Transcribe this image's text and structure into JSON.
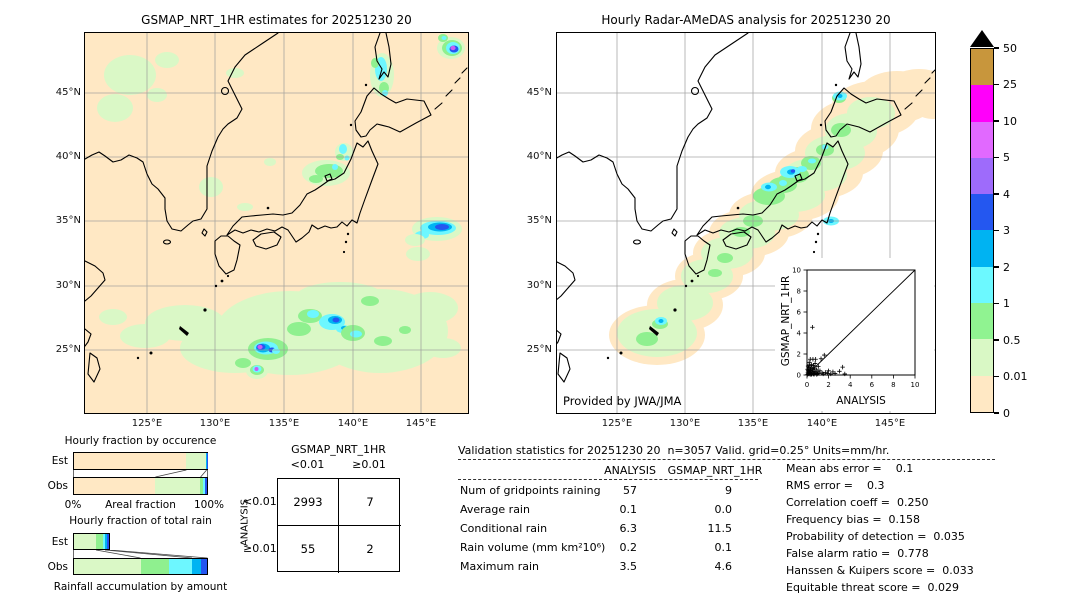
{
  "chart_data": [
    {
      "id": "gsmap_map",
      "type": "map",
      "title": "GSMAP_NRT_1HR estimates for 20251230 20",
      "lat_ticks": [
        "45°N",
        "40°N",
        "35°N",
        "30°N",
        "25°N"
      ],
      "lon_ticks": [
        "125°E",
        "130°E",
        "135°E",
        "140°E",
        "145°E"
      ]
    },
    {
      "id": "radar_map",
      "type": "map",
      "title": "Hourly Radar-AMeDAS analysis for 20251230 20",
      "lat_ticks": [
        "45°N",
        "40°N",
        "35°N",
        "30°N",
        "25°N"
      ],
      "lon_ticks": [
        "125°E",
        "130°E",
        "135°E",
        "140°E",
        "145°E"
      ],
      "credit": "Provided by JWA/JMA"
    },
    {
      "id": "colorbar",
      "type": "colorbar",
      "labels": [
        "50",
        "25",
        "10",
        "5",
        "4",
        "3",
        "2",
        "1",
        "0.5",
        "0.01",
        "0"
      ],
      "colors": [
        "#c8963c",
        "#ff00fa",
        "#e169ff",
        "#9e6bfb",
        "#2457f0",
        "#00b3f2",
        "#6cf9ff",
        "#90f391",
        "#d9f8c5",
        "#ffe8c4"
      ],
      "overflow_color": "#000000"
    },
    {
      "id": "occurrence_fraction",
      "type": "bar",
      "title": "Hourly fraction by occurence",
      "xlabel": "Areal fraction",
      "xtick_labels": [
        "0%",
        "100%"
      ],
      "rows": [
        "Est",
        "Obs"
      ],
      "series": [
        {
          "name": "Est",
          "segments": [
            {
              "c": "#ffe8c4",
              "v": 84
            },
            {
              "c": "#daf8c6",
              "v": 15
            },
            {
              "c": "#8ff08f",
              "v": 0.4
            },
            {
              "c": "#00b4f2",
              "v": 0.3
            },
            {
              "c": "#2456f0",
              "v": 0.3
            }
          ]
        },
        {
          "name": "Obs",
          "segments": [
            {
              "c": "#ffe8c4",
              "v": 61
            },
            {
              "c": "#daf8c6",
              "v": 33.5
            },
            {
              "c": "#8ff08f",
              "v": 2.2
            },
            {
              "c": "#6df7ff",
              "v": 1.5
            },
            {
              "c": "#2456f0",
              "v": 1.8
            }
          ]
        }
      ]
    },
    {
      "id": "totalrain_fraction",
      "type": "bar",
      "title": "Hourly fraction of total rain",
      "caption": "Rainfall accumulation by amount",
      "rows": [
        "Est",
        "Obs"
      ],
      "series": [
        {
          "name": "Est",
          "segments": [
            {
              "c": "#daf8c6",
              "v": 17
            },
            {
              "c": "#8ff08f",
              "v": 5.5
            },
            {
              "c": "#6df7ff",
              "v": 2
            },
            {
              "c": "#00b4f2",
              "v": 1.2
            },
            {
              "c": "#2456f0",
              "v": 1.8
            }
          ]
        },
        {
          "name": "Obs",
          "segments": [
            {
              "c": "#daf8c6",
              "v": 50
            },
            {
              "c": "#8ff08f",
              "v": 21.5
            },
            {
              "c": "#6df7ff",
              "v": 17
            },
            {
              "c": "#00b4f2",
              "v": 7
            },
            {
              "c": "#2456f0",
              "v": 4.5
            }
          ]
        }
      ]
    },
    {
      "id": "contingency_table",
      "type": "table",
      "col_title": "GSMAP_NRT_1HR",
      "row_title": "ANALYSIS",
      "col_labels": [
        "<0.01",
        "≥0.01"
      ],
      "row_labels": [
        "<0.01",
        "≥0.01"
      ],
      "values": [
        [
          "2993",
          "7"
        ],
        [
          "55",
          "2"
        ]
      ]
    },
    {
      "id": "inset_scatter",
      "type": "scatter",
      "xlabel": "ANALYSIS",
      "ylabel": "GSMAP_NRT_1HR",
      "xlim": [
        0,
        10
      ],
      "ylim": [
        0,
        10
      ],
      "tick_labels": [
        "0",
        "2",
        "4",
        "6",
        "8",
        "10"
      ],
      "identity_line": true,
      "points": [
        [
          0.05,
          0.05
        ],
        [
          0.08,
          0.2
        ],
        [
          0.1,
          0.4
        ],
        [
          0.12,
          0.1
        ],
        [
          0.15,
          0.3
        ],
        [
          0.15,
          0.7
        ],
        [
          0.2,
          0.1
        ],
        [
          0.2,
          0.5
        ],
        [
          0.25,
          0.2
        ],
        [
          0.25,
          0.9
        ],
        [
          0.3,
          0.05
        ],
        [
          0.3,
          0.45
        ],
        [
          0.3,
          1.5
        ],
        [
          0.35,
          0.15
        ],
        [
          0.35,
          0.6
        ],
        [
          0.4,
          0.3
        ],
        [
          0.4,
          1.0
        ],
        [
          0.45,
          0.1
        ],
        [
          0.45,
          0.75
        ],
        [
          0.5,
          0.25
        ],
        [
          0.5,
          4.55
        ],
        [
          0.55,
          0.5
        ],
        [
          0.55,
          1.5
        ],
        [
          0.6,
          0.1
        ],
        [
          0.6,
          0.9
        ],
        [
          0.65,
          0.35
        ],
        [
          0.7,
          0.15
        ],
        [
          0.7,
          0.65
        ],
        [
          0.75,
          1.1
        ],
        [
          0.8,
          0.25
        ],
        [
          0.8,
          1.5
        ],
        [
          0.9,
          0.5
        ],
        [
          0.95,
          0.1
        ],
        [
          1.0,
          0.3
        ],
        [
          1.05,
          0.8
        ],
        [
          1.1,
          0.15
        ],
        [
          1.2,
          0.4
        ],
        [
          1.3,
          1.55
        ],
        [
          1.4,
          0.2
        ],
        [
          1.5,
          0.1
        ],
        [
          1.6,
          1.9
        ],
        [
          1.7,
          0.25
        ],
        [
          1.9,
          0.15
        ],
        [
          2.0,
          0.4
        ],
        [
          2.2,
          0.1
        ],
        [
          2.4,
          0.3
        ],
        [
          2.6,
          0.15
        ],
        [
          3.0,
          0.35
        ],
        [
          3.3,
          0.75
        ],
        [
          3.5,
          0.1
        ],
        [
          0.1,
          0.85
        ],
        [
          0.2,
          1.2
        ],
        [
          0.05,
          0.55
        ],
        [
          0.4,
          0.05
        ],
        [
          0.65,
          0.05
        ],
        [
          0.9,
          0.05
        ]
      ]
    },
    {
      "id": "validation_stats",
      "type": "table",
      "title": "Validation statistics for 20251230 20  n=3057 Valid. grid=0.25° Units=mm/hr.",
      "columns": [
        "ANALYSIS",
        "GSMAP_NRT_1HR"
      ],
      "rows": [
        [
          "Num of gridpoints raining",
          "57",
          "9"
        ],
        [
          "Average rain",
          "0.1",
          "0.0"
        ],
        [
          "Conditional rain",
          "6.3",
          "11.5"
        ],
        [
          "Rain volume (mm km²10⁶)",
          "0.2",
          "0.1"
        ],
        [
          "Maximum rain",
          "3.5",
          "4.6"
        ]
      ],
      "metrics": [
        "Mean abs error =    0.1",
        "RMS error =    0.3",
        "Correlation coeff =  0.250",
        "Frequency bias =  0.158",
        "Probability of detection =  0.035",
        "False alarm ratio =  0.778",
        "Hanssen & Kuipers score =  0.033",
        "Equitable threat score =  0.029"
      ]
    }
  ]
}
